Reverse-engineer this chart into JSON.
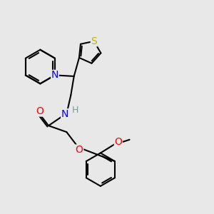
{
  "bg_color": "#e8e8e8",
  "bond_color": "#000000",
  "bond_width": 1.5,
  "atom_colors": {
    "N": "#0000ff",
    "O": "#ff0000",
    "S": "#b8b800",
    "H": "#7a9a9a",
    "C": "#000000"
  },
  "font_size": 9,
  "fig_size": [
    3.0,
    3.0
  ],
  "dpi": 100
}
